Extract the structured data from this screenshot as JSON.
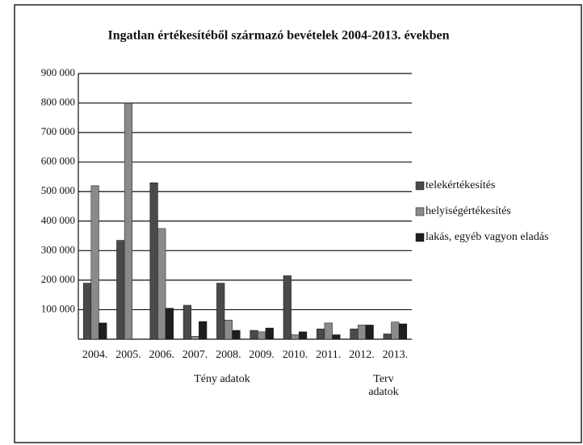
{
  "chart_data": {
    "type": "bar",
    "title": "Ingatlan értékesítéből származó bevételek 2004-2013. években",
    "categories": [
      "2004.",
      "2005.",
      "2006.",
      "2007.",
      "2008.",
      "2009.",
      "2010.",
      "2011.",
      "2012.",
      "2013."
    ],
    "series": [
      {
        "name": "telekértékesítés",
        "color": "#4a4a4a",
        "values": [
          190000,
          335000,
          530000,
          115000,
          190000,
          30000,
          215000,
          35000,
          35000,
          18000
        ]
      },
      {
        "name": "helyiségértékesítés",
        "color": "#8a8a8a",
        "values": [
          520000,
          800000,
          375000,
          10000,
          65000,
          25000,
          15000,
          55000,
          48000,
          58000
        ]
      },
      {
        "name": "lakás, egyéb vagyon eladás",
        "color": "#1e1e1e",
        "values": [
          55000,
          0,
          105000,
          60000,
          30000,
          38000,
          25000,
          15000,
          48000,
          52000
        ]
      }
    ],
    "ylim": [
      0,
      900000
    ],
    "yticks": [
      {
        "value": 100000,
        "label": "100 000"
      },
      {
        "value": 200000,
        "label": "200 000"
      },
      {
        "value": 300000,
        "label": "300 000"
      },
      {
        "value": 400000,
        "label": "400 000"
      },
      {
        "value": 500000,
        "label": "500 000"
      },
      {
        "value": 600000,
        "label": "600 000"
      },
      {
        "value": 700000,
        "label": "700 000"
      },
      {
        "value": 800000,
        "label": "800 000"
      },
      {
        "value": 900000,
        "label": "900 000"
      }
    ],
    "grid": true,
    "legend": "right",
    "annotations": [
      "Tény adatok",
      "Terv adatok"
    ]
  }
}
